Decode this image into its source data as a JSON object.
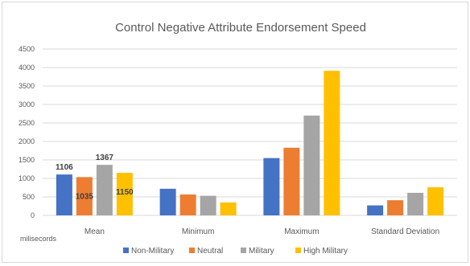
{
  "chart_data": {
    "type": "bar",
    "title": "Control Negative Attribute Endorsement Speed",
    "xlabel": "",
    "ylabel": "milisecords",
    "categories": [
      "Mean",
      "Minimum",
      "Maximum",
      "Standard Deviation"
    ],
    "ylim": [
      0,
      4500
    ],
    "yticks": [
      0,
      500,
      1000,
      1500,
      2000,
      2500,
      3000,
      3500,
      4000,
      4500
    ],
    "grid": true,
    "legend_position": "bottom",
    "series": [
      {
        "name": "Non-Military",
        "color": "#4472c4",
        "values": [
          1106,
          720,
          1550,
          270
        ]
      },
      {
        "name": "Neutral",
        "color": "#ed7d31",
        "values": [
          1035,
          565,
          1830,
          410
        ]
      },
      {
        "name": "Military",
        "color": "#a5a5a5",
        "values": [
          1367,
          530,
          2700,
          610
        ]
      },
      {
        "name": "High Military",
        "color": "#ffc000",
        "values": [
          1150,
          350,
          3910,
          760
        ]
      }
    ],
    "data_labels": [
      {
        "series": 0,
        "category": 0,
        "text": "1106"
      },
      {
        "series": 1,
        "category": 0,
        "text": "1035"
      },
      {
        "series": 2,
        "category": 0,
        "text": "1367"
      },
      {
        "series": 3,
        "category": 0,
        "text": "1150"
      }
    ]
  }
}
